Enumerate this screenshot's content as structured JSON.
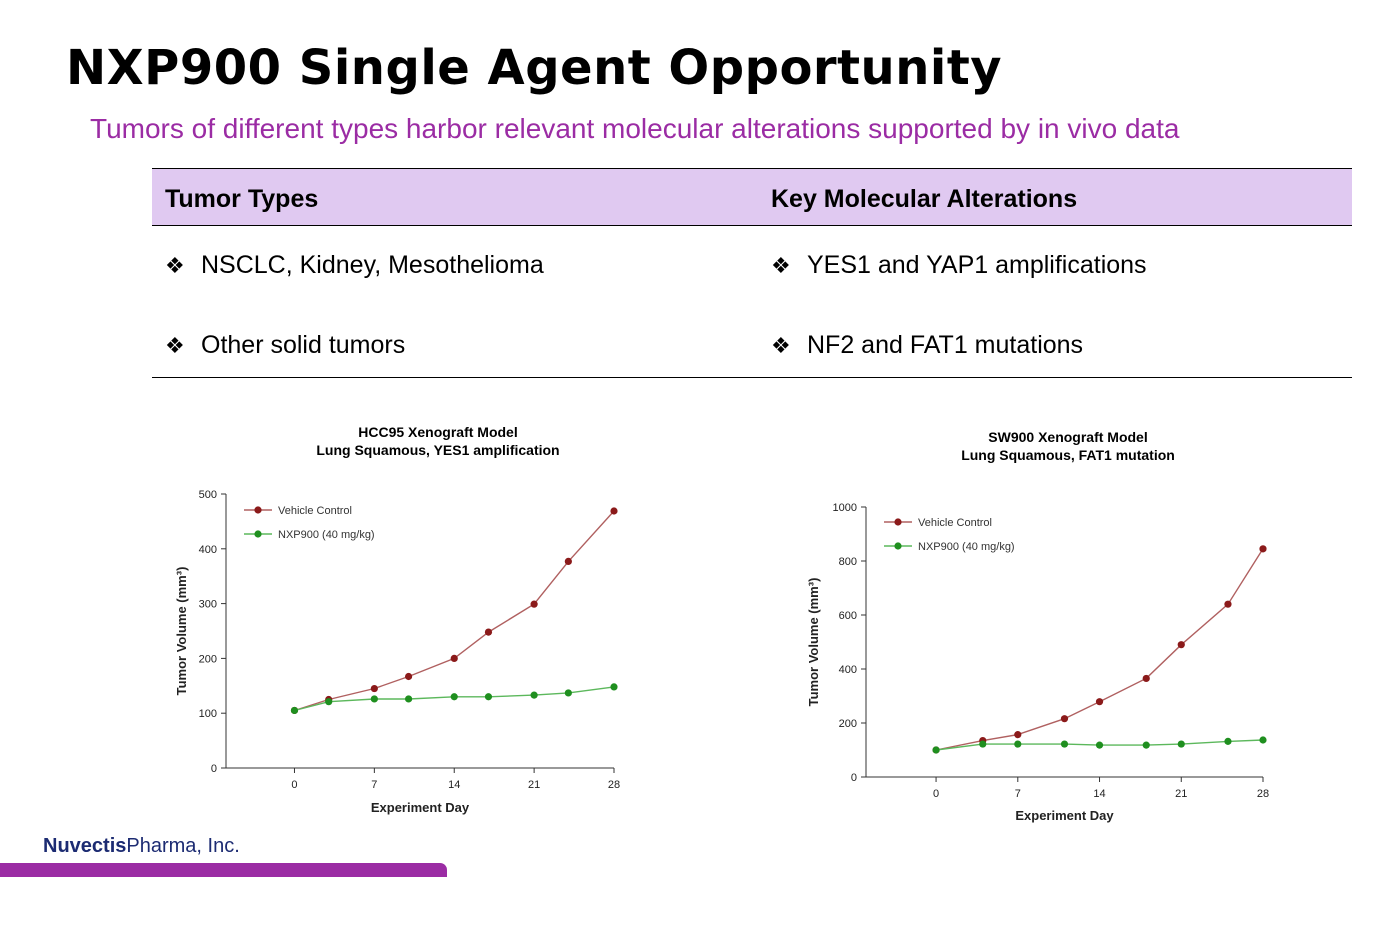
{
  "slide": {
    "title": "NXP900 Single Agent Opportunity",
    "subtitle": "Tumors of different types harbor relevant molecular alterations supported by in vivo data"
  },
  "table": {
    "headers": [
      "Tumor Types",
      "Key Molecular Alterations"
    ],
    "bullet_glyph": "❖",
    "rows": [
      [
        "NSCLC, Kidney, Mesothelioma",
        "YES1 and YAP1 amplifications"
      ],
      [
        "Other solid tumors",
        "NF2 and FAT1 mutations"
      ]
    ]
  },
  "chart_data": [
    {
      "type": "line",
      "title": "HCC95 Xenograft Model",
      "subtitle": "Lung Squamous, YES1 amplification",
      "xlabel": "Experiment Day",
      "ylabel": "Tumor Volume (mm³)",
      "xlim": [
        -6,
        28
      ],
      "ylim": [
        0,
        500
      ],
      "xticks": [
        0,
        7,
        14,
        21,
        28
      ],
      "yticks": [
        0,
        100,
        200,
        300,
        400,
        500
      ],
      "legend_position": "top-left",
      "grid": false,
      "series": [
        {
          "name": "Vehicle Control",
          "color": "#8b1a1a",
          "line_color": "#b06060",
          "x": [
            0,
            3,
            7,
            10,
            14,
            17,
            21,
            24,
            28
          ],
          "y": [
            105,
            125,
            145,
            167,
            200,
            248,
            299,
            377,
            469
          ]
        },
        {
          "name": "NXP900 (40 mg/kg)",
          "color": "#1f8f1f",
          "line_color": "#5cb85c",
          "x": [
            0,
            3,
            7,
            10,
            14,
            17,
            21,
            24,
            28
          ],
          "y": [
            105,
            121,
            126,
            126,
            130,
            130,
            133,
            137,
            148
          ]
        }
      ]
    },
    {
      "type": "line",
      "title": "SW900 Xenograft Model",
      "subtitle": "Lung Squamous, FAT1 mutation",
      "xlabel": "Experiment Day",
      "ylabel": "Tumor Volume (mm³)",
      "xlim": [
        -6,
        28
      ],
      "ylim": [
        0,
        1000
      ],
      "xticks": [
        0,
        7,
        14,
        21,
        28
      ],
      "yticks": [
        0,
        200,
        400,
        600,
        800,
        1000
      ],
      "legend_position": "top-left",
      "grid": false,
      "series": [
        {
          "name": "Vehicle Control",
          "color": "#8b1a1a",
          "line_color": "#b06060",
          "x": [
            0,
            4,
            7,
            11,
            14,
            18,
            21,
            25,
            28
          ],
          "y": [
            100,
            135,
            157,
            216,
            279,
            365,
            490,
            640,
            845
          ]
        },
        {
          "name": "NXP900 (40 mg/kg)",
          "color": "#1f8f1f",
          "line_color": "#5cb85c",
          "x": [
            0,
            4,
            7,
            11,
            14,
            18,
            21,
            25,
            28
          ],
          "y": [
            100,
            122,
            122,
            122,
            118,
            118,
            122,
            132,
            137
          ]
        }
      ]
    }
  ],
  "footer": {
    "brand": "Nuvectis",
    "suffix": "Pharma, Inc.",
    "accent_color": "#9b2ca4"
  }
}
